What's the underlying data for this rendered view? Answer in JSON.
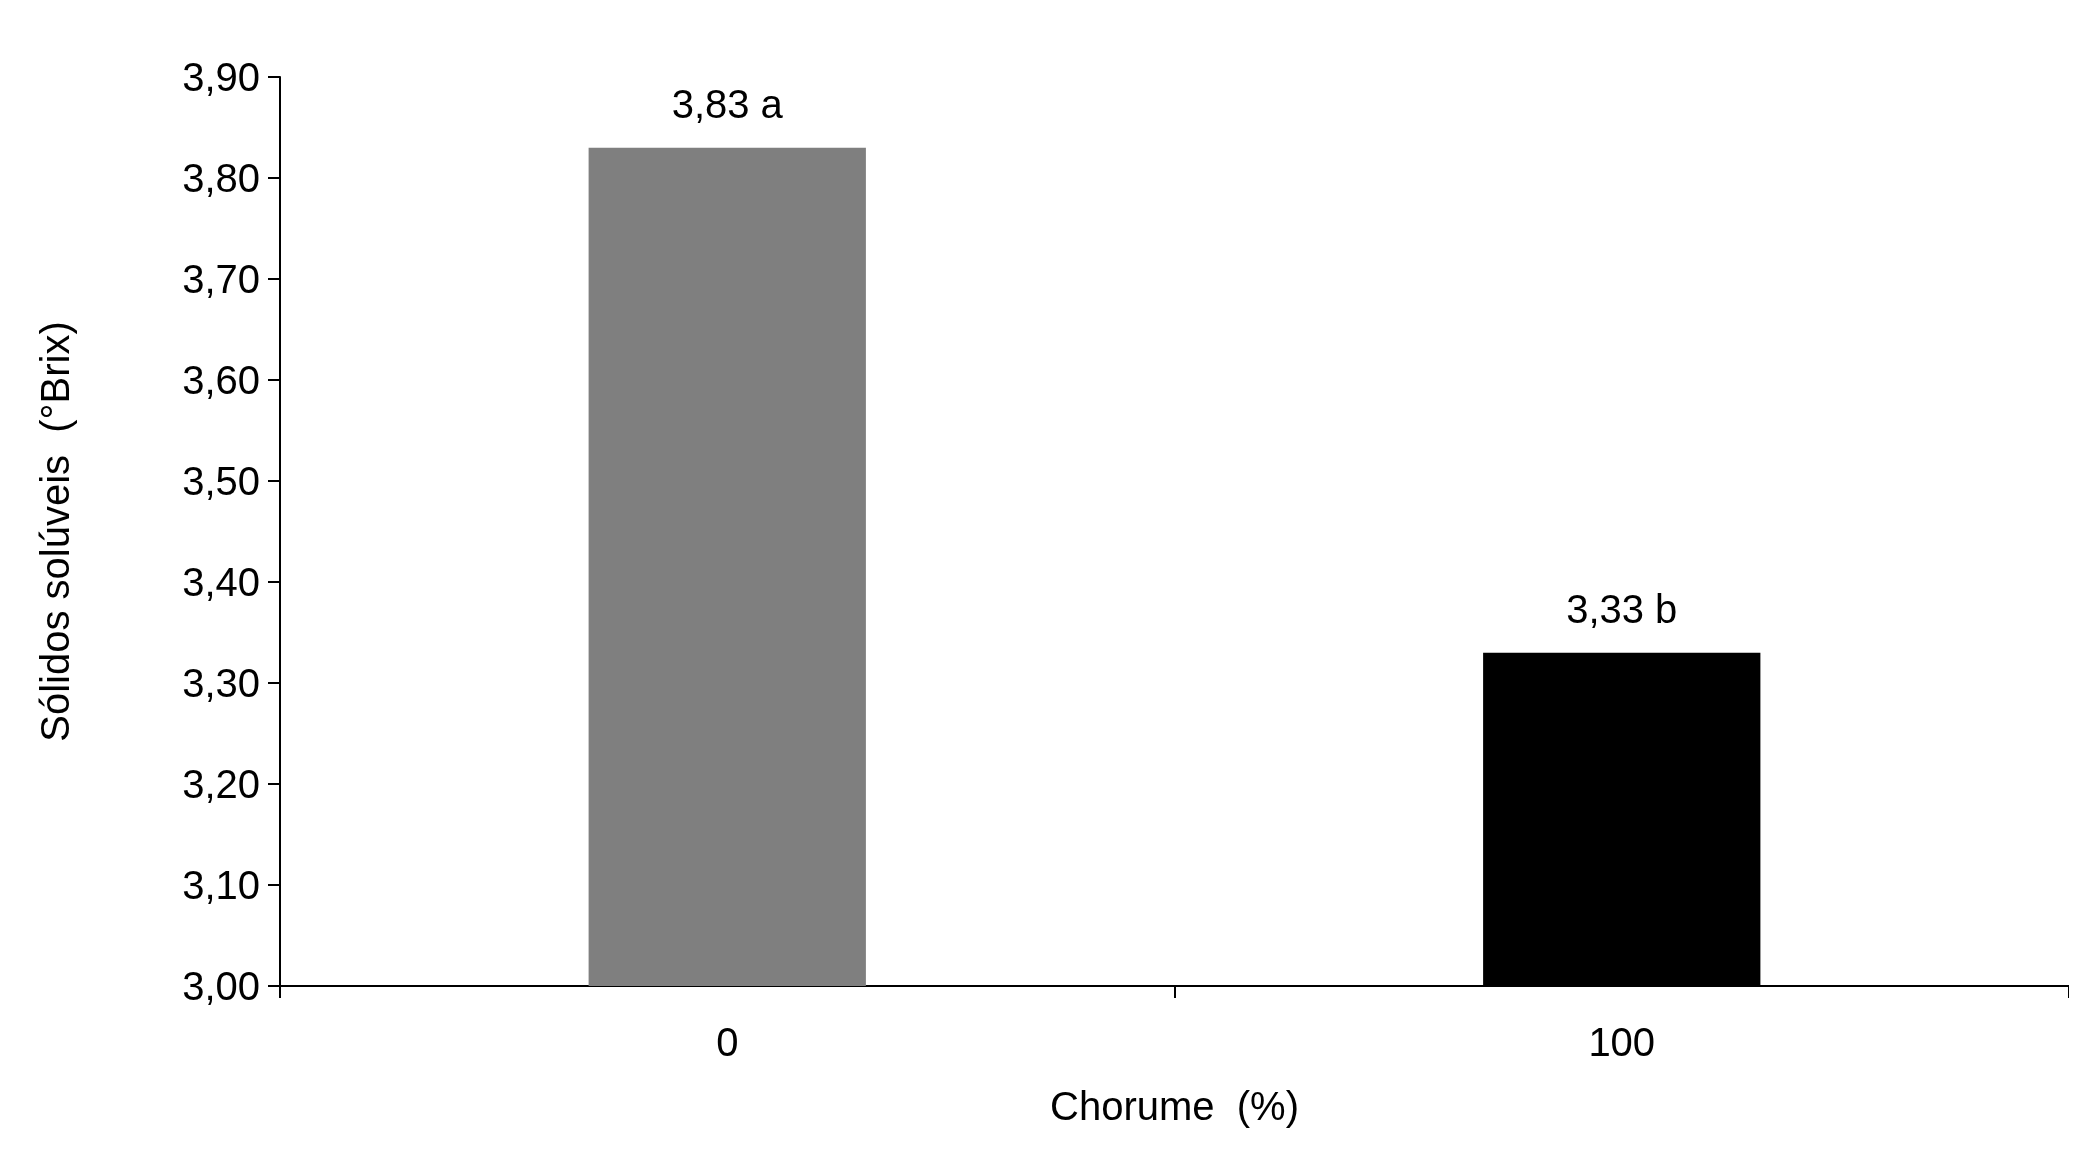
{
  "chart_data": {
    "type": "bar",
    "categories": [
      "0",
      "100"
    ],
    "values": [
      3.83,
      3.33
    ],
    "colors": [
      "#7f7f7f",
      "#000000"
    ],
    "value_labels": [
      "3,83 a",
      "3,33 b"
    ],
    "xlabel": "Chorume  (%)",
    "ylabel": "Sólidos solúveis  (°Brix)",
    "ylim": [
      3.0,
      3.9
    ],
    "yticks": [
      {
        "value": 3.0,
        "label": "3,00"
      },
      {
        "value": 3.1,
        "label": "3,10"
      },
      {
        "value": 3.2,
        "label": "3,20"
      },
      {
        "value": 3.3,
        "label": "3,30"
      },
      {
        "value": 3.4,
        "label": "3,40"
      },
      {
        "value": 3.5,
        "label": "3,50"
      },
      {
        "value": 3.6,
        "label": "3,60"
      },
      {
        "value": 3.7,
        "label": "3,70"
      },
      {
        "value": 3.8,
        "label": "3,80"
      },
      {
        "value": 3.9,
        "label": "3,90"
      }
    ]
  }
}
